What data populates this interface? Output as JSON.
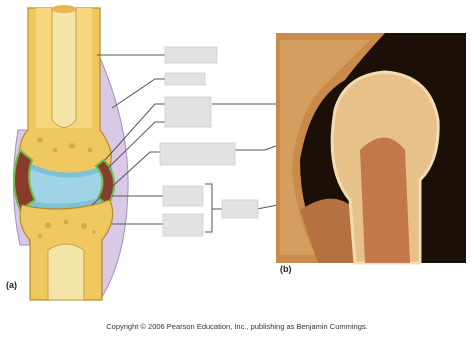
{
  "panels": {
    "a": "(a)",
    "b": "(b)"
  },
  "copyright": "Copyright © 2006 Pearson Education, Inc., publishing as Benjamin Cummings."
}
